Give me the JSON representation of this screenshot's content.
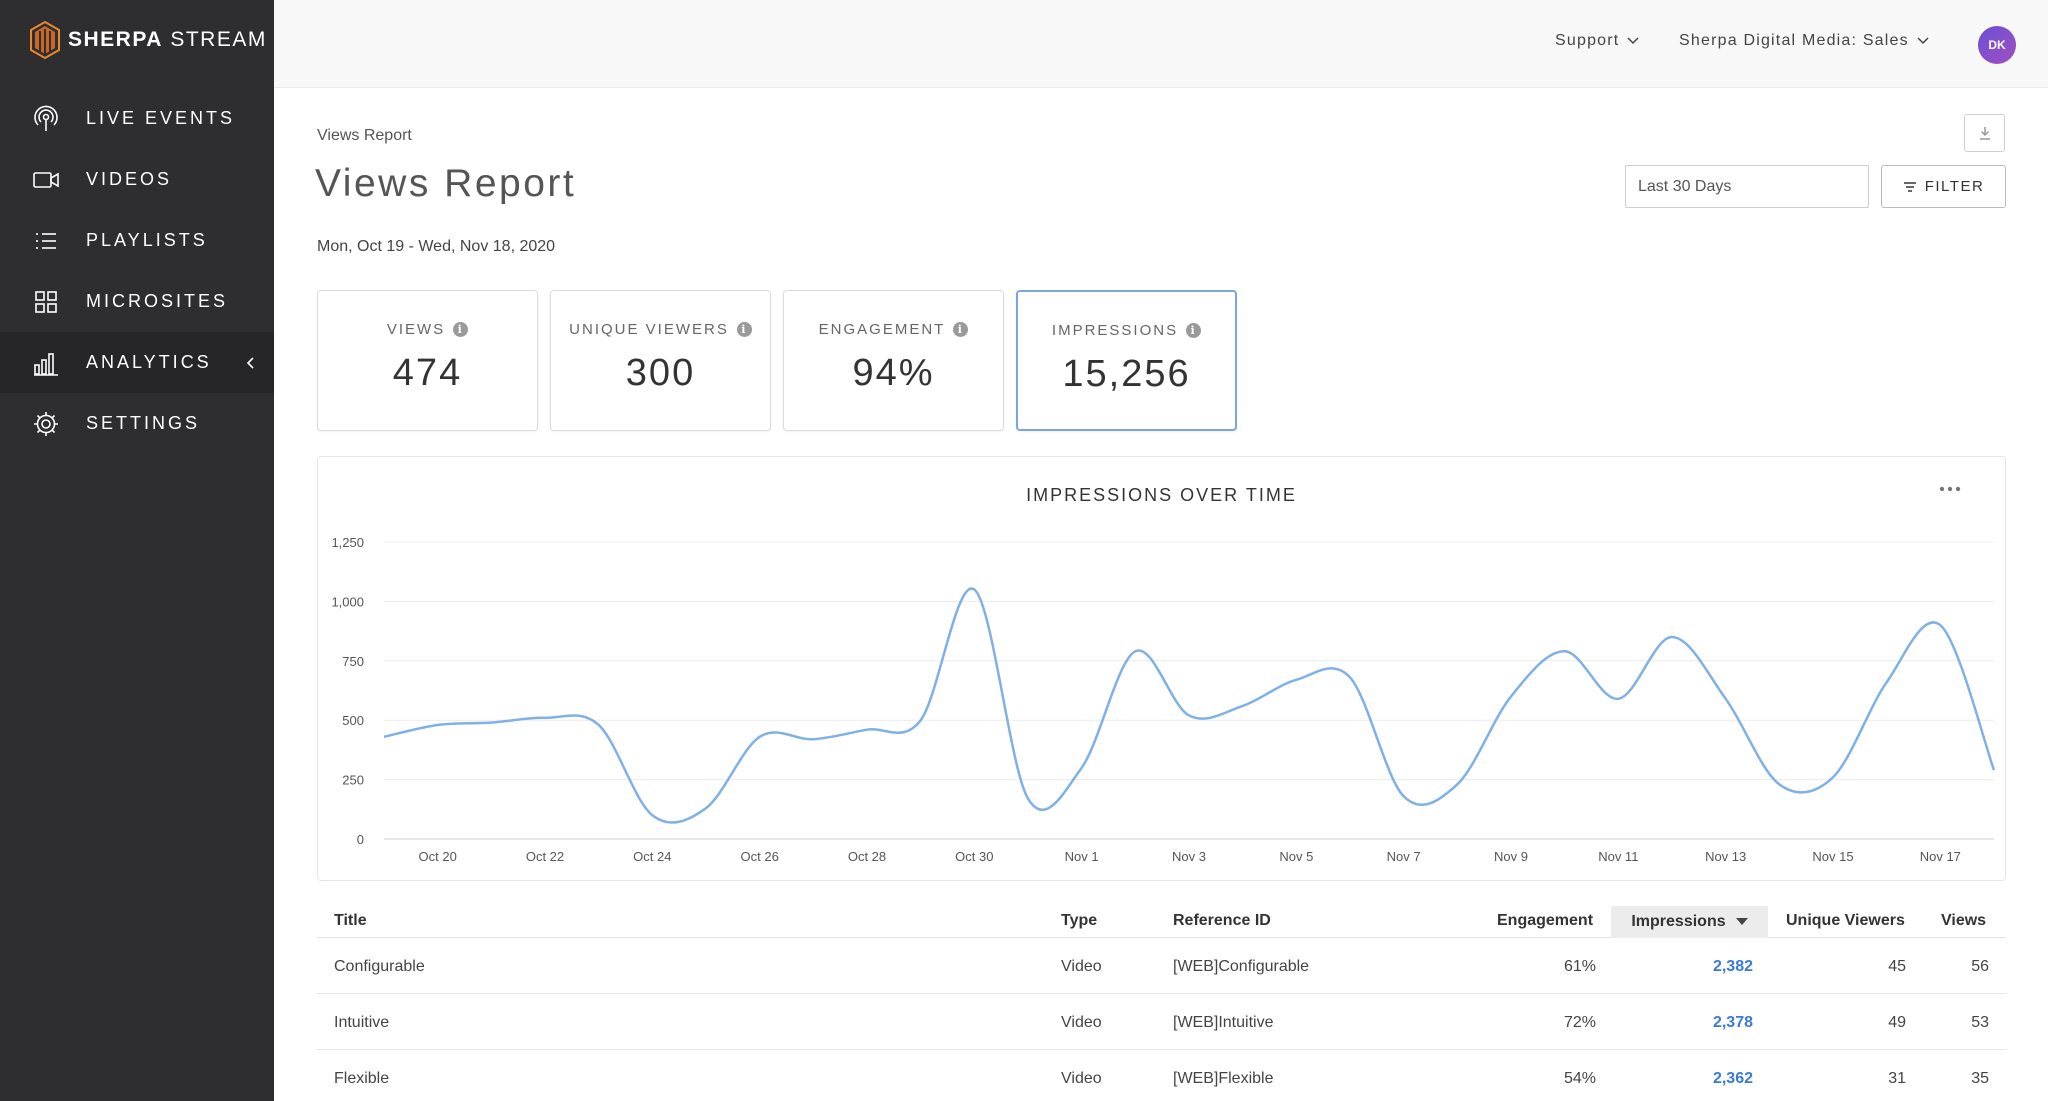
{
  "brand": {
    "name_bold": "SHERPA",
    "name_rest": "STREAM",
    "mark_colors": [
      "#e8882e",
      "#c9662a"
    ]
  },
  "sidebar": {
    "items": [
      {
        "label": "LIVE EVENTS",
        "icon": "broadcast-icon"
      },
      {
        "label": "VIDEOS",
        "icon": "video-camera-icon"
      },
      {
        "label": "PLAYLISTS",
        "icon": "list-icon"
      },
      {
        "label": "MICROSITES",
        "icon": "grid-icon"
      },
      {
        "label": "ANALYTICS",
        "icon": "bar-chart-icon",
        "active": true
      },
      {
        "label": "SETTINGS",
        "icon": "gear-icon"
      }
    ]
  },
  "header": {
    "support": "Support",
    "account": "Sherpa Digital Media: Sales",
    "avatar_initials": "DK"
  },
  "page": {
    "breadcrumb": "Views Report",
    "title": "Views Report",
    "date_range": "Mon, Oct 19 - Wed, Nov 18, 2020",
    "period_select": "Last 30 Days",
    "filter_label": "FILTER"
  },
  "stats": [
    {
      "label": "VIEWS",
      "value": "474"
    },
    {
      "label": "UNIQUE VIEWERS",
      "value": "300"
    },
    {
      "label": "ENGAGEMENT",
      "value": "94%"
    },
    {
      "label": "IMPRESSIONS",
      "value": "15,256",
      "active": true
    }
  ],
  "chart_data": {
    "type": "line",
    "title": "IMPRESSIONS OVER TIME",
    "x": [
      "Oct 19",
      "Oct 20",
      "Oct 21",
      "Oct 22",
      "Oct 23",
      "Oct 24",
      "Oct 25",
      "Oct 26",
      "Oct 27",
      "Oct 28",
      "Oct 29",
      "Oct 30",
      "Oct 31",
      "Nov 1",
      "Nov 2",
      "Nov 3",
      "Nov 4",
      "Nov 5",
      "Nov 6",
      "Nov 7",
      "Nov 8",
      "Nov 9",
      "Nov 10",
      "Nov 11",
      "Nov 12",
      "Nov 13",
      "Nov 14",
      "Nov 15",
      "Nov 16",
      "Nov 17",
      "Nov 18"
    ],
    "tick_labels": [
      "Oct 20",
      "Oct 22",
      "Oct 24",
      "Oct 26",
      "Oct 28",
      "Oct 30",
      "Nov 1",
      "Nov 3",
      "Nov 5",
      "Nov 7",
      "Nov 9",
      "Nov 11",
      "Nov 13",
      "Nov 15",
      "Nov 17"
    ],
    "series": [
      {
        "values": [
          430,
          480,
          490,
          510,
          480,
          100,
          130,
          430,
          420,
          460,
          500,
          1050,
          170,
          300,
          790,
          520,
          560,
          670,
          680,
          180,
          230,
          600,
          790,
          590,
          850,
          590,
          230,
          260,
          660,
          900,
          290
        ]
      }
    ],
    "y_ticks": [
      0,
      250,
      500,
      750,
      1000,
      1250
    ],
    "y_tick_labels": [
      "0",
      "250",
      "500",
      "750",
      "1,000",
      "1,250"
    ],
    "ylim": [
      0,
      1250
    ],
    "line_color": "#7fb0e6",
    "grid": true
  },
  "table": {
    "columns": [
      "Title",
      "Type",
      "Reference ID",
      "Engagement",
      "Impressions",
      "Unique Viewers",
      "Views"
    ],
    "sorted_column": "Impressions",
    "rows": [
      {
        "title": "Configurable",
        "type": "Video",
        "ref": "[WEB]Configurable",
        "engagement": "61%",
        "impressions": "2,382",
        "unique": "45",
        "views": "56"
      },
      {
        "title": "Intuitive",
        "type": "Video",
        "ref": "[WEB]Intuitive",
        "engagement": "72%",
        "impressions": "2,378",
        "unique": "49",
        "views": "53"
      },
      {
        "title": "Flexible",
        "type": "Video",
        "ref": "[WEB]Flexible",
        "engagement": "54%",
        "impressions": "2,362",
        "unique": "31",
        "views": "35"
      }
    ]
  }
}
